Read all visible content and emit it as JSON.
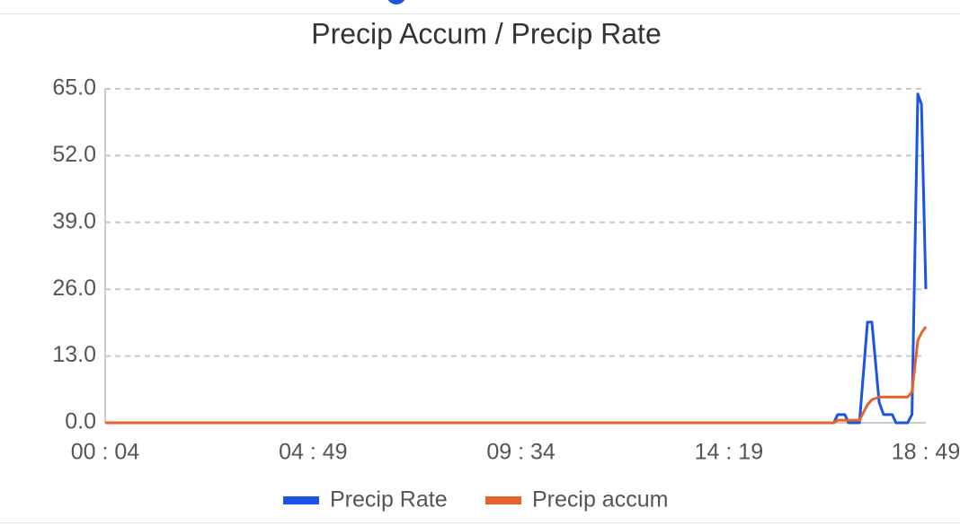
{
  "chart_data": {
    "type": "line",
    "title": "Precip Accum / Precip Rate",
    "x": [
      "00:04",
      "16:43",
      "16:48",
      "16:58",
      "17:03",
      "17:18",
      "17:29",
      "17:35",
      "17:45",
      "17:51",
      "18:03",
      "18:08",
      "18:24",
      "18:30",
      "18:38",
      "18:43",
      "18:49"
    ],
    "series": [
      {
        "name": "Precip Rate",
        "color": "#1b55e3",
        "values": [
          0,
          0,
          1.6,
          1.6,
          0,
          0,
          19.6,
          19.6,
          4,
          1.6,
          1.6,
          0,
          0,
          1.6,
          64,
          62,
          26
        ]
      },
      {
        "name": "Precip accum",
        "color": "#e8622b",
        "values": [
          0,
          0,
          0.5,
          0.5,
          0.5,
          0.5,
          3.5,
          4.5,
          5,
          5,
          5,
          5,
          5,
          6,
          16,
          17.5,
          18.7
        ]
      }
    ],
    "xlim": [
      "00:04",
      "18:49"
    ],
    "xticks": [
      {
        "value": "00:04",
        "label": "00 : 04"
      },
      {
        "value": "04:49",
        "label": "04 : 49"
      },
      {
        "value": "09:34",
        "label": "09 : 34"
      },
      {
        "value": "14:19",
        "label": "14 : 19"
      },
      {
        "value": "18:49",
        "label": "18 : 49"
      }
    ],
    "ylim": [
      0,
      65
    ],
    "yticks": [
      {
        "value": 0,
        "label": "0.0"
      },
      {
        "value": 13,
        "label": "13.0"
      },
      {
        "value": 26,
        "label": "26.0"
      },
      {
        "value": 39,
        "label": "39.0"
      },
      {
        "value": 52,
        "label": "52.0"
      },
      {
        "value": 65,
        "label": "65.0"
      }
    ],
    "grid": true
  }
}
